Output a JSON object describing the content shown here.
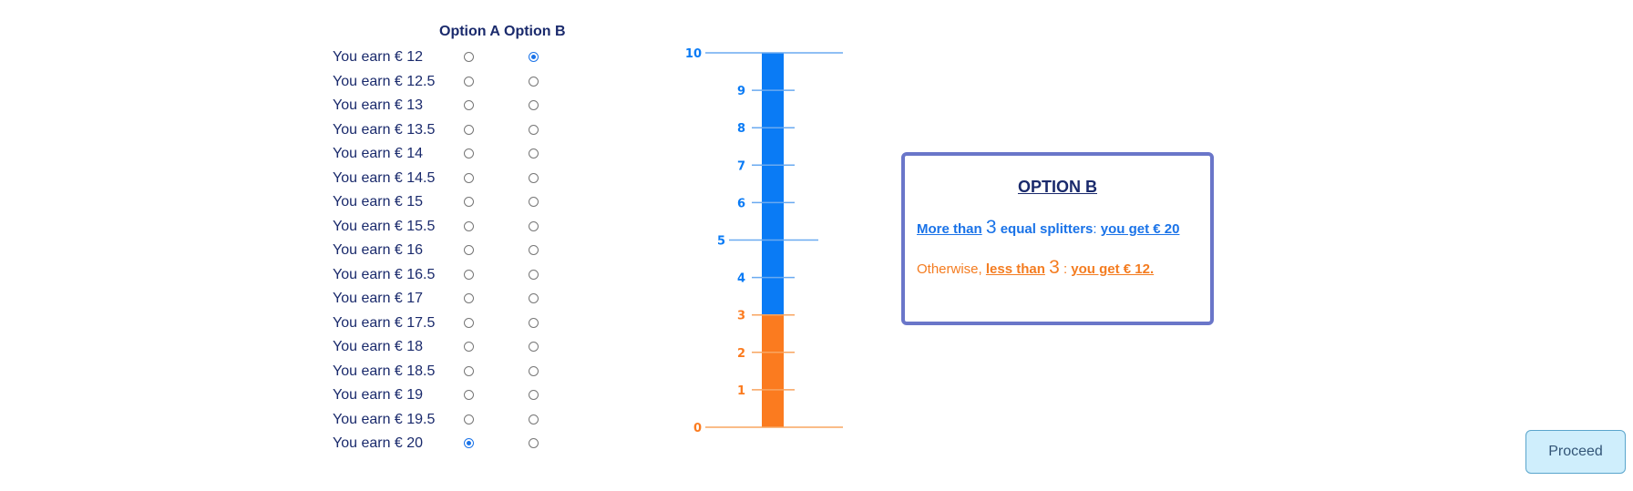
{
  "table": {
    "header_a": "Option A",
    "header_b": "Option B",
    "rows": [
      {
        "label": "You earn € 12",
        "selected": "B"
      },
      {
        "label": "You earn € 12.5",
        "selected": ""
      },
      {
        "label": "You earn € 13",
        "selected": ""
      },
      {
        "label": "You earn € 13.5",
        "selected": ""
      },
      {
        "label": "You earn € 14",
        "selected": ""
      },
      {
        "label": "You earn € 14.5",
        "selected": ""
      },
      {
        "label": "You earn € 15",
        "selected": ""
      },
      {
        "label": "You earn € 15.5",
        "selected": ""
      },
      {
        "label": "You earn € 16",
        "selected": ""
      },
      {
        "label": "You earn € 16.5",
        "selected": ""
      },
      {
        "label": "You earn € 17",
        "selected": ""
      },
      {
        "label": "You earn € 17.5",
        "selected": ""
      },
      {
        "label": "You earn € 18",
        "selected": ""
      },
      {
        "label": "You earn € 18.5",
        "selected": ""
      },
      {
        "label": "You earn € 19",
        "selected": ""
      },
      {
        "label": "You earn € 19.5",
        "selected": ""
      },
      {
        "label": "You earn € 20",
        "selected": "A"
      }
    ]
  },
  "gauge": {
    "min": 0,
    "max": 10,
    "threshold": 3,
    "ticks": [
      "0",
      "1",
      "2",
      "3",
      "4",
      "5",
      "6",
      "7",
      "8",
      "9",
      "10"
    ],
    "colors": {
      "upper": "#0a7bf5",
      "lower": "#fb7b1f",
      "upper_line": "#6aaaf0",
      "lower_line": "#f8a560"
    }
  },
  "option_box": {
    "title": "OPTION B",
    "line1": {
      "more_than": "More than",
      "number": "3",
      "middle": "equal splitters",
      "colon": ":",
      "payoff": "you get € 20"
    },
    "line2": {
      "otherwise": "Otherwise,",
      "less_than": "less than",
      "number": "3",
      "colon": ":",
      "payoff": "you get € 12."
    }
  },
  "proceed_label": "Proceed"
}
